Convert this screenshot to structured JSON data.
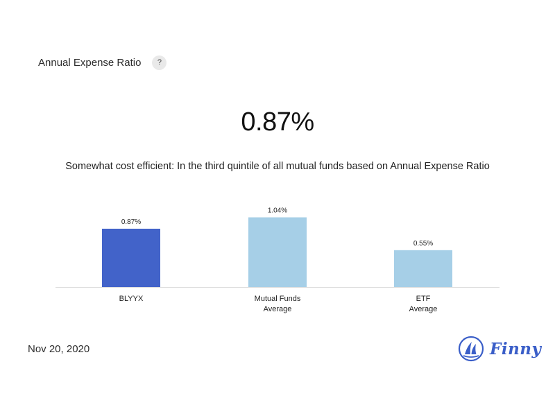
{
  "header": {
    "title": "Annual Expense Ratio",
    "help_label": "?"
  },
  "headline_value": "0.87%",
  "description": "Somewhat cost efficient: In the third quintile of all mutual funds based on Annual Expense Ratio",
  "date": "Nov 20, 2020",
  "logo": {
    "text": "Finny",
    "icon": "sailboat-icon"
  },
  "colors": {
    "primary_bar": "#4263c9",
    "secondary_bar": "#a6cfe7",
    "baseline": "#dddddd",
    "brand": "#3a5ec8"
  },
  "chart_data": {
    "type": "bar",
    "categories": [
      [
        "BLYYX"
      ],
      [
        "Mutual Funds",
        "Average"
      ],
      [
        "ETF",
        "Average"
      ]
    ],
    "values": [
      0.87,
      1.04,
      0.55
    ],
    "value_labels": [
      "0.87%",
      "1.04%",
      "0.55%"
    ],
    "ylim": [
      0,
      1.2
    ],
    "grid": false,
    "legend": "none",
    "title": "",
    "xlabel": "",
    "ylabel": ""
  }
}
